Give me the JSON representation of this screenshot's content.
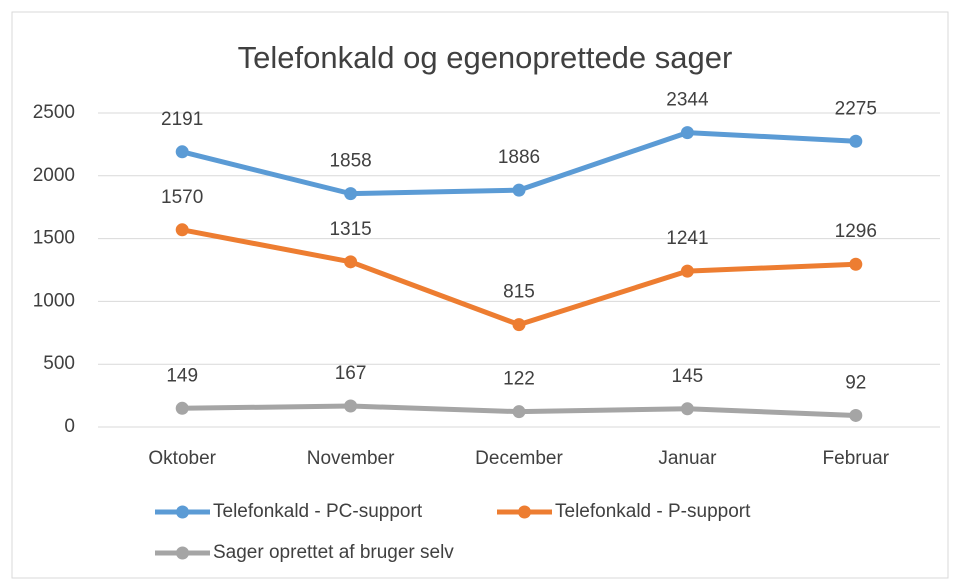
{
  "chart_data": {
    "type": "line",
    "title": "Telefonkald og egenoprettede sager",
    "categories": [
      "Oktober",
      "November",
      "December",
      "Januar",
      "Februar"
    ],
    "series": [
      {
        "name": "Telefonkald - PC-support",
        "color": "#5b9bd5",
        "values": [
          2191,
          1858,
          1886,
          2344,
          2275
        ]
      },
      {
        "name": "Telefonkald - P-support",
        "color": "#ed7d31",
        "values": [
          1570,
          1315,
          815,
          1241,
          1296
        ]
      },
      {
        "name": "Sager oprettet af bruger selv",
        "color": "#a5a5a5",
        "values": [
          149,
          167,
          122,
          145,
          92
        ]
      }
    ],
    "ylim": [
      0,
      2500
    ],
    "yticks": [
      0,
      500,
      1000,
      1500,
      2000,
      2500
    ],
    "grid": true,
    "legend": "bottom"
  }
}
